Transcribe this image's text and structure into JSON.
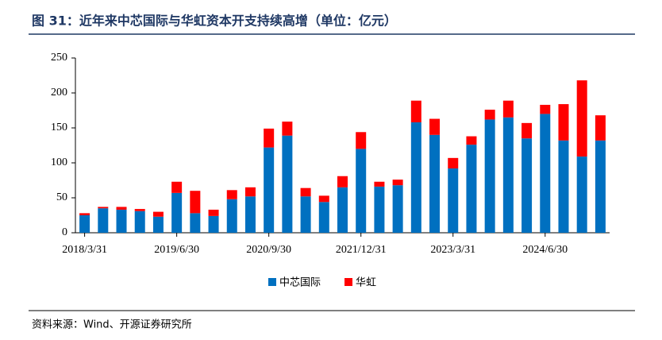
{
  "title": "图 31：近年来中芯国际与华虹资本开支持续高增（单位：亿元）",
  "source": "资料来源：Wind、开源证券研究所",
  "chart_data": {
    "type": "stacked_bar",
    "categories": [
      "2018/3/31",
      null,
      null,
      null,
      null,
      "2019/6/30",
      null,
      null,
      null,
      null,
      "2020/9/30",
      null,
      null,
      null,
      null,
      "2021/12/31",
      null,
      null,
      null,
      null,
      "2023/3/31",
      null,
      null,
      null,
      null,
      "2024/6/30",
      null,
      null,
      null
    ],
    "series": [
      {
        "name": "中芯国际",
        "color": "#0070c0",
        "values": [
          25,
          35,
          33,
          31,
          23,
          57,
          28,
          24,
          48,
          52,
          122,
          139,
          52,
          44,
          65,
          120,
          66,
          68,
          158,
          140,
          92,
          126,
          162,
          165,
          135,
          170,
          132,
          109,
          132
        ]
      },
      {
        "name": "华虹",
        "color": "#ff0000",
        "values": [
          3,
          2,
          4,
          3,
          7,
          16,
          32,
          9,
          13,
          13,
          27,
          20,
          12,
          9,
          16,
          24,
          7,
          8,
          31,
          23,
          15,
          12,
          14,
          24,
          22,
          13,
          52,
          109,
          36
        ]
      }
    ],
    "ylim": [
      0,
      250
    ],
    "yticks": [
      0,
      50,
      100,
      150,
      200,
      250
    ],
    "legend": "bottom"
  }
}
